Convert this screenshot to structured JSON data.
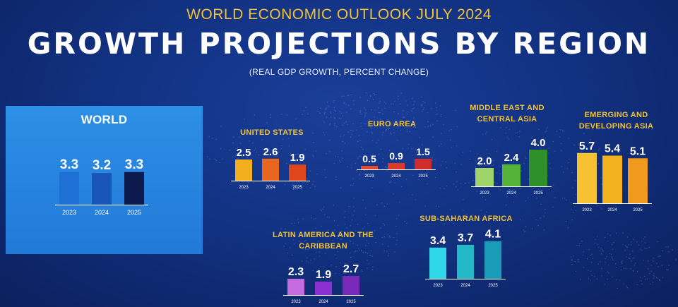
{
  "header": {
    "kicker": "WORLD ECONOMIC OUTLOOK JULY 2024",
    "title": "GROWTH PROJECTIONS BY REGION",
    "subtitle": "(REAL GDP GROWTH, PERCENT CHANGE)"
  },
  "chart_data": [
    {
      "type": "bar",
      "title": "WORLD",
      "categories": [
        "2023",
        "2024",
        "2025"
      ],
      "values": [
        3.3,
        3.2,
        3.3
      ],
      "colors": [
        "#1e6fd6",
        "#1a56b8",
        "#0c1a4e"
      ]
    },
    {
      "type": "bar",
      "title": "UNITED STATES",
      "categories": [
        "2023",
        "2024",
        "2025"
      ],
      "values": [
        2.5,
        2.6,
        1.9
      ],
      "colors": [
        "#f2b01e",
        "#e8661e",
        "#e0461c"
      ]
    },
    {
      "type": "bar",
      "title": "EURO AREA",
      "categories": [
        "2023",
        "2024",
        "2025"
      ],
      "values": [
        0.5,
        0.9,
        1.5
      ],
      "colors": [
        "#e04a2e",
        "#d93a2a",
        "#cf2c2c"
      ]
    },
    {
      "type": "bar",
      "title": "MIDDLE EAST AND CENTRAL ASIA",
      "categories": [
        "2023",
        "2024",
        "2025"
      ],
      "values": [
        2.0,
        2.4,
        4.0
      ],
      "colors": [
        "#9fd46a",
        "#56b33a",
        "#2f8f2a"
      ]
    },
    {
      "type": "bar",
      "title": "EMERGING AND DEVELOPING ASIA",
      "categories": [
        "2023",
        "2024",
        "2025"
      ],
      "values": [
        5.7,
        5.4,
        5.1
      ],
      "colors": [
        "#f7c232",
        "#f2b21e",
        "#ef9a1c"
      ]
    },
    {
      "type": "bar",
      "title": "LATIN AMERICA AND THE CARIBBEAN",
      "categories": [
        "2023",
        "2024",
        "2025"
      ],
      "values": [
        2.3,
        1.9,
        2.7
      ],
      "colors": [
        "#c56be0",
        "#8b2fd0",
        "#7a2ab8"
      ]
    },
    {
      "type": "bar",
      "title": "SUB-SAHARAN AFRICA",
      "categories": [
        "2023",
        "2024",
        "2025"
      ],
      "values": [
        3.4,
        3.7,
        4.1
      ],
      "colors": [
        "#2fd8e8",
        "#22b8c8",
        "#1a9cb8"
      ]
    }
  ]
}
